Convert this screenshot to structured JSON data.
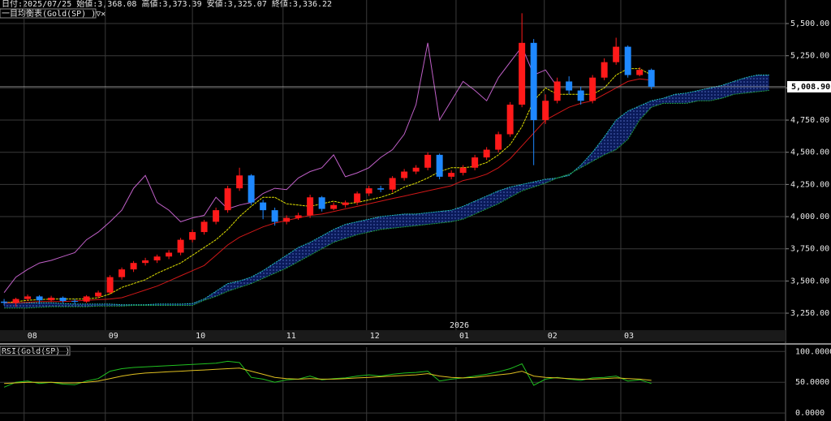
{
  "chart_data": {
    "type": "candlestick",
    "title": "日付:2025/07/25 始値:3,368.08 高値:3,373.39 安値:3,325.07 終値:3,336.22",
    "indicator_label": "一目均衡表(Gold(SP) )▽✕",
    "up_color": "#ff1a1a",
    "down_color": "#1e88ff",
    "grid": true,
    "xlim": [
      -0.35,
      66.4
    ],
    "xticks": [
      {
        "value": 1.7,
        "label": "08"
      },
      {
        "value": 8.6,
        "label": "09"
      },
      {
        "value": 16,
        "label": "10"
      },
      {
        "value": 23.7,
        "label": "11"
      },
      {
        "value": 30.8,
        "label": "12"
      },
      {
        "value": 38.4,
        "label": "01"
      },
      {
        "value": 45.9,
        "label": "02"
      },
      {
        "value": 52.4,
        "label": "03"
      }
    ],
    "year_marker": {
      "value": 38.4,
      "label": "2026"
    },
    "ylim": [
      3118,
      5683
    ],
    "yticks": [
      {
        "value": 3250,
        "label": "3,250.00"
      },
      {
        "value": 3500,
        "label": "3,500.00"
      },
      {
        "value": 3750,
        "label": "3,750.00"
      },
      {
        "value": 4000,
        "label": "4,000.00"
      },
      {
        "value": 4250,
        "label": "4,250.00"
      },
      {
        "value": 4500,
        "label": "4,500.00"
      },
      {
        "value": 4750,
        "label": "4,750.00"
      },
      {
        "value": 5000,
        "label": "5,000.00"
      },
      {
        "value": 5250,
        "label": "5,250.00"
      },
      {
        "value": 5500,
        "label": "5,500.00"
      }
    ],
    "current_price": {
      "value": 5008.9,
      "label": "5,008.90"
    },
    "open": [
      3340,
      3330,
      3360,
      3380,
      3350,
      3370,
      3345,
      3340,
      3380,
      3410,
      3530,
      3590,
      3640,
      3660,
      3690,
      3720,
      3820,
      3880,
      3960,
      4050,
      4220,
      4320,
      4110,
      4050,
      3960,
      3990,
      4010,
      4150,
      4060,
      4090,
      4110,
      4180,
      4220,
      4210,
      4300,
      4350,
      4380,
      4480,
      4310,
      4340,
      4380,
      4460,
      4520,
      4640,
      4870,
      5350,
      4750,
      4900,
      5050,
      4980,
      4900,
      5080,
      5200,
      5320,
      5100,
      5140
    ],
    "high": [
      3360,
      3370,
      3395,
      3390,
      3385,
      3380,
      3360,
      3390,
      3425,
      3545,
      3605,
      3655,
      3680,
      3705,
      3740,
      3835,
      3900,
      3975,
      4070,
      4240,
      4380,
      4330,
      4130,
      4070,
      4010,
      4030,
      4170,
      4160,
      4110,
      4125,
      4195,
      4240,
      4240,
      4315,
      4370,
      4400,
      4500,
      4490,
      4360,
      4400,
      4480,
      4540,
      4660,
      4890,
      5580,
      5380,
      4950,
      5080,
      5090,
      5010,
      5100,
      5230,
      5390,
      5330,
      5160,
      5150
    ],
    "low": [
      3310,
      3300,
      3345,
      3320,
      3340,
      3330,
      3320,
      3330,
      3365,
      3395,
      3510,
      3570,
      3620,
      3640,
      3670,
      3700,
      3800,
      3860,
      3940,
      4030,
      4200,
      4090,
      3980,
      3930,
      3940,
      3975,
      3990,
      4040,
      4050,
      4070,
      4090,
      4160,
      4190,
      4190,
      4280,
      4330,
      4360,
      4290,
      4290,
      4320,
      4360,
      4440,
      4500,
      4620,
      4850,
      4400,
      4720,
      4880,
      4950,
      4870,
      4880,
      5060,
      5180,
      5080,
      5090,
      4990
    ],
    "close": [
      3330,
      3360,
      3380,
      3350,
      3370,
      3345,
      3340,
      3380,
      3410,
      3530,
      3590,
      3640,
      3660,
      3690,
      3720,
      3820,
      3880,
      3960,
      4050,
      4220,
      4320,
      4110,
      4050,
      3960,
      3990,
      4010,
      4150,
      4060,
      4090,
      4110,
      4180,
      4220,
      4210,
      4300,
      4350,
      4380,
      4480,
      4310,
      4340,
      4380,
      4460,
      4520,
      4640,
      4870,
      5350,
      4750,
      4900,
      5050,
      4980,
      4900,
      5080,
      5200,
      5320,
      5100,
      5140,
      5008.9
    ],
    "lines": [
      {
        "color": "#e0e000",
        "dash": true,
        "values": [
          3330,
          3340,
          3350,
          3355,
          3360,
          3360,
          3360,
          3360,
          3370,
          3400,
          3450,
          3480,
          3510,
          3560,
          3600,
          3640,
          3700,
          3760,
          3820,
          3900,
          4000,
          4080,
          4150,
          4150,
          4100,
          4090,
          4080,
          4100,
          4120,
          4100,
          4110,
          4130,
          4150,
          4180,
          4230,
          4260,
          4300,
          4350,
          4380,
          4380,
          4390,
          4420,
          4480,
          4560,
          4700,
          4900,
          5000,
          4950,
          4950,
          4950,
          4950,
          5000,
          5100,
          5150,
          5150,
          5100
        ]
      },
      {
        "color": "#d01818",
        "dash": false,
        "values": [
          3330,
          3330,
          3335,
          3340,
          3340,
          3340,
          3345,
          3350,
          3355,
          3360,
          3370,
          3400,
          3430,
          3460,
          3500,
          3540,
          3580,
          3620,
          3700,
          3780,
          3840,
          3880,
          3920,
          3950,
          3970,
          3990,
          4010,
          4020,
          4040,
          4060,
          4080,
          4100,
          4120,
          4140,
          4160,
          4180,
          4200,
          4220,
          4240,
          4280,
          4300,
          4330,
          4380,
          4450,
          4550,
          4650,
          4750,
          4800,
          4850,
          4880,
          4900,
          4950,
          5000,
          5050,
          5070,
          5060
        ]
      },
      {
        "color": "#c060c8",
        "dash": false,
        "values": [
          3410,
          3530,
          3590,
          3640,
          3660,
          3690,
          3720,
          3820,
          3880,
          3960,
          4050,
          4220,
          4320,
          4110,
          4050,
          3960,
          3990,
          4010,
          4150,
          4060,
          4090,
          4110,
          4180,
          4220,
          4210,
          4300,
          4350,
          4380,
          4480,
          4310,
          4340,
          4380,
          4460,
          4520,
          4640,
          4870,
          5350,
          4750,
          4900,
          5050,
          4980,
          4900,
          5080,
          5200,
          5320,
          5100,
          5140,
          5008.9
        ]
      }
    ],
    "cloud": {
      "color_a": "#20c0c0",
      "color_b": "#20a040",
      "fill": "#0a1a5a",
      "span_a": [
        3330,
        3330,
        3330,
        3330,
        3330,
        3325,
        3320,
        3320,
        3320,
        3320,
        3315,
        3315,
        3315,
        3320,
        3320,
        3320,
        3325,
        3360,
        3420,
        3480,
        3500,
        3530,
        3580,
        3640,
        3700,
        3760,
        3800,
        3850,
        3900,
        3940,
        3960,
        3980,
        4000,
        4010,
        4020,
        4020,
        4030,
        4040,
        4050,
        4080,
        4120,
        4160,
        4200,
        4230,
        4250,
        4270,
        4290,
        4300,
        4320,
        4400,
        4500,
        4620,
        4750,
        4820,
        4860,
        4900,
        4920,
        4950,
        4960,
        4980,
        5000,
        5020,
        5050,
        5080,
        5100,
        5100
      ],
      "span_b": [
        3290,
        3290,
        3290,
        3295,
        3300,
        3300,
        3300,
        3300,
        3305,
        3305,
        3305,
        3310,
        3310,
        3310,
        3310,
        3310,
        3310,
        3350,
        3380,
        3420,
        3450,
        3480,
        3520,
        3560,
        3600,
        3650,
        3700,
        3750,
        3800,
        3830,
        3860,
        3880,
        3900,
        3910,
        3920,
        3930,
        3940,
        3950,
        3960,
        3980,
        4020,
        4060,
        4100,
        4150,
        4200,
        4230,
        4260,
        4300,
        4330,
        4380,
        4430,
        4480,
        4520,
        4600,
        4750,
        4850,
        4880,
        4880,
        4880,
        4900,
        4900,
        4920,
        4950,
        4960,
        4970,
        4980
      ]
    },
    "rsi": {
      "title": "RSI(Gold(SP) )",
      "ylim": [
        -13,
        107
      ],
      "yticks": [
        {
          "value": 100,
          "label": "100.0000"
        },
        {
          "value": 50,
          "label": "50.0000"
        },
        {
          "value": 0,
          "label": "0.0000"
        }
      ],
      "series": [
        {
          "color": "#20c020",
          "values": [
            42,
            50,
            52,
            48,
            50,
            47,
            46,
            52,
            56,
            68,
            72,
            74,
            75,
            76,
            77,
            78,
            79,
            80,
            81,
            84,
            82,
            58,
            55,
            50,
            54,
            55,
            60,
            54,
            56,
            57,
            60,
            62,
            60,
            63,
            65,
            66,
            68,
            52,
            55,
            57,
            60,
            63,
            67,
            72,
            80,
            45,
            55,
            58,
            55,
            53,
            57,
            58,
            60,
            52,
            54,
            48
          ]
        },
        {
          "color": "#e0c020",
          "values": [
            48,
            49,
            50,
            50,
            50,
            49,
            49,
            50,
            52,
            56,
            60,
            63,
            65,
            66,
            67,
            68,
            69,
            70,
            71,
            72,
            73,
            68,
            63,
            58,
            56,
            55,
            56,
            55,
            55,
            56,
            57,
            58,
            59,
            60,
            61,
            62,
            64,
            60,
            58,
            57,
            58,
            60,
            62,
            64,
            68,
            60,
            58,
            57,
            56,
            55,
            55,
            56,
            57,
            56,
            55,
            53
          ]
        }
      ]
    }
  }
}
